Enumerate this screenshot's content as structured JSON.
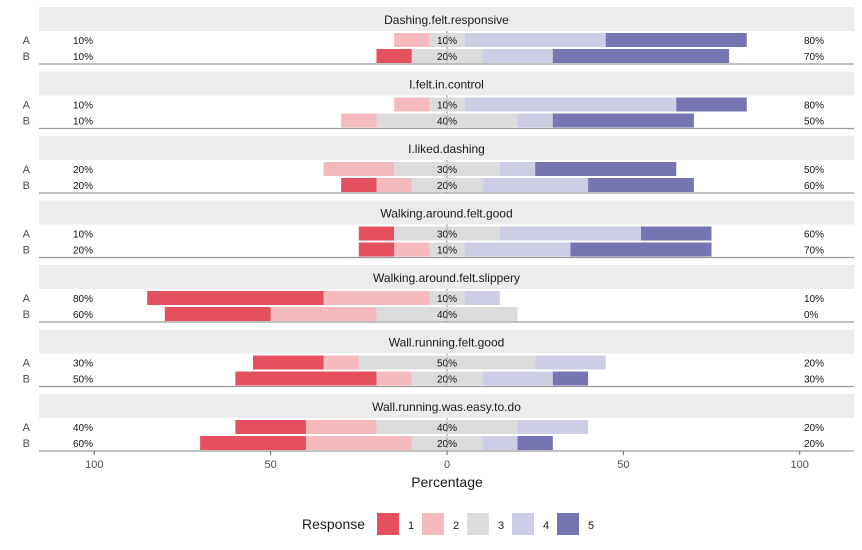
{
  "chart_data": {
    "type": "bar",
    "subtype": "diverging-stacked-likert",
    "xlabel": "Percentage",
    "x_ticks": [
      100,
      50,
      0,
      50,
      100
    ],
    "xlim": [
      -115,
      115
    ],
    "legend": {
      "title": "Response",
      "placement": "bottom",
      "levels": [
        "1",
        "2",
        "3",
        "4",
        "5"
      ]
    },
    "colors": {
      "1": "#e5505e",
      "2": "#f5babe",
      "3": "#dcdcdc",
      "4": "#cdcde6",
      "5": "#7575b2"
    },
    "groups": [
      "A",
      "B"
    ],
    "panels": [
      {
        "title": "Dashing.felt.responsive",
        "rows": [
          {
            "group": "A",
            "values": [
              0,
              10,
              10,
              40,
              40
            ],
            "low_label": "10%",
            "mid_label": "10%",
            "high_label": "80%"
          },
          {
            "group": "B",
            "values": [
              10,
              0,
              20,
              20,
              50
            ],
            "low_label": "10%",
            "mid_label": "20%",
            "high_label": "70%"
          }
        ]
      },
      {
        "title": "I.felt.in.control",
        "rows": [
          {
            "group": "A",
            "values": [
              0,
              10,
              10,
              60,
              20
            ],
            "low_label": "10%",
            "mid_label": "10%",
            "high_label": "80%"
          },
          {
            "group": "B",
            "values": [
              0,
              10,
              40,
              10,
              40
            ],
            "low_label": "10%",
            "mid_label": "40%",
            "high_label": "50%"
          }
        ]
      },
      {
        "title": "I.liked.dashing",
        "rows": [
          {
            "group": "A",
            "values": [
              0,
              20,
              30,
              10,
              40
            ],
            "low_label": "20%",
            "mid_label": "30%",
            "high_label": "50%"
          },
          {
            "group": "B",
            "values": [
              10,
              10,
              20,
              30,
              30
            ],
            "low_label": "20%",
            "mid_label": "20%",
            "high_label": "60%"
          }
        ]
      },
      {
        "title": "Walking.around.felt.good",
        "rows": [
          {
            "group": "A",
            "values": [
              10,
              0,
              30,
              40,
              20
            ],
            "low_label": "10%",
            "mid_label": "30%",
            "high_label": "60%"
          },
          {
            "group": "B",
            "values": [
              10,
              10,
              10,
              30,
              40
            ],
            "low_label": "20%",
            "mid_label": "10%",
            "high_label": "70%"
          }
        ]
      },
      {
        "title": "Walking.around.felt.slippery",
        "rows": [
          {
            "group": "A",
            "values": [
              50,
              30,
              10,
              10,
              0
            ],
            "low_label": "80%",
            "mid_label": "10%",
            "high_label": "10%"
          },
          {
            "group": "B",
            "values": [
              30,
              30,
              40,
              0,
              0
            ],
            "low_label": "60%",
            "mid_label": "40%",
            "high_label": "0%"
          }
        ]
      },
      {
        "title": "Wall.running.felt.good",
        "rows": [
          {
            "group": "A",
            "values": [
              20,
              10,
              50,
              20,
              0
            ],
            "low_label": "30%",
            "mid_label": "50%",
            "high_label": "20%"
          },
          {
            "group": "B",
            "values": [
              40,
              10,
              20,
              20,
              10
            ],
            "low_label": "50%",
            "mid_label": "20%",
            "high_label": "30%"
          }
        ]
      },
      {
        "title": "Wall.running.was.easy.to.do",
        "rows": [
          {
            "group": "A",
            "values": [
              20,
              20,
              40,
              20,
              0
            ],
            "low_label": "40%",
            "mid_label": "40%",
            "high_label": "20%"
          },
          {
            "group": "B",
            "values": [
              30,
              30,
              20,
              10,
              10
            ],
            "low_label": "60%",
            "mid_label": "20%",
            "high_label": "20%"
          }
        ]
      }
    ]
  }
}
